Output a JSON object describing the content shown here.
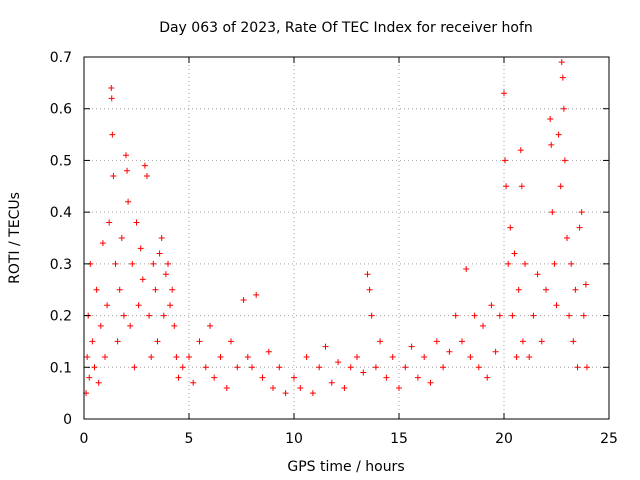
{
  "chart_data": {
    "type": "scatter",
    "title": "Day 063 of 2023, Rate Of TEC Index for receiver hofn",
    "xlabel": "GPS time / hours",
    "ylabel": "ROTI / TECUs",
    "xlim": [
      0,
      25
    ],
    "ylim": [
      0,
      0.7
    ],
    "x_ticks": [
      0,
      5,
      10,
      15,
      20,
      25
    ],
    "y_ticks": [
      0,
      0.1,
      0.2,
      0.3,
      0.4,
      0.5,
      0.6,
      0.7
    ],
    "x_tick_labels": [
      "0",
      "5",
      "10",
      "15",
      "20",
      "25"
    ],
    "y_tick_labels": [
      "0",
      "0.1",
      "0.2",
      "0.3",
      "0.4",
      "0.5",
      "0.6",
      "0.7"
    ],
    "grid": true,
    "marker": "plus",
    "series": [
      {
        "name": "ROTI",
        "color": "#ff0000",
        "points": [
          [
            0.1,
            0.05
          ],
          [
            0.15,
            0.12
          ],
          [
            0.2,
            0.2
          ],
          [
            0.25,
            0.08
          ],
          [
            0.3,
            0.3
          ],
          [
            0.4,
            0.15
          ],
          [
            0.5,
            0.1
          ],
          [
            0.6,
            0.25
          ],
          [
            0.7,
            0.07
          ],
          [
            0.8,
            0.18
          ],
          [
            0.9,
            0.34
          ],
          [
            1.0,
            0.12
          ],
          [
            1.1,
            0.22
          ],
          [
            1.2,
            0.38
          ],
          [
            1.3,
            0.64
          ],
          [
            1.32,
            0.62
          ],
          [
            1.35,
            0.55
          ],
          [
            1.4,
            0.47
          ],
          [
            1.5,
            0.3
          ],
          [
            1.6,
            0.15
          ],
          [
            1.7,
            0.25
          ],
          [
            1.8,
            0.35
          ],
          [
            1.9,
            0.2
          ],
          [
            2.0,
            0.51
          ],
          [
            2.05,
            0.48
          ],
          [
            2.1,
            0.42
          ],
          [
            2.2,
            0.18
          ],
          [
            2.3,
            0.3
          ],
          [
            2.4,
            0.1
          ],
          [
            2.5,
            0.38
          ],
          [
            2.6,
            0.22
          ],
          [
            2.7,
            0.33
          ],
          [
            2.8,
            0.27
          ],
          [
            2.9,
            0.49
          ],
          [
            3.0,
            0.47
          ],
          [
            3.1,
            0.2
          ],
          [
            3.2,
            0.12
          ],
          [
            3.3,
            0.3
          ],
          [
            3.4,
            0.25
          ],
          [
            3.5,
            0.15
          ],
          [
            3.6,
            0.32
          ],
          [
            3.7,
            0.35
          ],
          [
            3.8,
            0.2
          ],
          [
            3.9,
            0.28
          ],
          [
            4.0,
            0.3
          ],
          [
            4.1,
            0.22
          ],
          [
            4.2,
            0.25
          ],
          [
            4.3,
            0.18
          ],
          [
            4.4,
            0.12
          ],
          [
            4.5,
            0.08
          ],
          [
            4.7,
            0.1
          ],
          [
            5.0,
            0.12
          ],
          [
            5.2,
            0.07
          ],
          [
            5.5,
            0.15
          ],
          [
            5.8,
            0.1
          ],
          [
            6.0,
            0.18
          ],
          [
            6.2,
            0.08
          ],
          [
            6.5,
            0.12
          ],
          [
            6.8,
            0.06
          ],
          [
            7.0,
            0.15
          ],
          [
            7.3,
            0.1
          ],
          [
            7.6,
            0.23
          ],
          [
            7.8,
            0.12
          ],
          [
            8.0,
            0.1
          ],
          [
            8.2,
            0.24
          ],
          [
            8.5,
            0.08
          ],
          [
            8.8,
            0.13
          ],
          [
            9.0,
            0.06
          ],
          [
            9.3,
            0.1
          ],
          [
            9.6,
            0.05
          ],
          [
            10.0,
            0.08
          ],
          [
            10.3,
            0.06
          ],
          [
            10.6,
            0.12
          ],
          [
            10.9,
            0.05
          ],
          [
            11.2,
            0.1
          ],
          [
            11.5,
            0.14
          ],
          [
            11.8,
            0.07
          ],
          [
            12.1,
            0.11
          ],
          [
            12.4,
            0.06
          ],
          [
            12.7,
            0.1
          ],
          [
            13.0,
            0.12
          ],
          [
            13.3,
            0.09
          ],
          [
            13.5,
            0.28
          ],
          [
            13.6,
            0.25
          ],
          [
            13.7,
            0.2
          ],
          [
            13.9,
            0.1
          ],
          [
            14.1,
            0.15
          ],
          [
            14.4,
            0.08
          ],
          [
            14.7,
            0.12
          ],
          [
            15.0,
            0.06
          ],
          [
            15.3,
            0.1
          ],
          [
            15.6,
            0.14
          ],
          [
            15.9,
            0.08
          ],
          [
            16.2,
            0.12
          ],
          [
            16.5,
            0.07
          ],
          [
            16.8,
            0.15
          ],
          [
            17.1,
            0.1
          ],
          [
            17.4,
            0.13
          ],
          [
            17.7,
            0.2
          ],
          [
            18.0,
            0.15
          ],
          [
            18.2,
            0.29
          ],
          [
            18.4,
            0.12
          ],
          [
            18.6,
            0.2
          ],
          [
            18.8,
            0.1
          ],
          [
            19.0,
            0.18
          ],
          [
            19.2,
            0.08
          ],
          [
            19.4,
            0.22
          ],
          [
            19.6,
            0.13
          ],
          [
            19.8,
            0.2
          ],
          [
            20.0,
            0.63
          ],
          [
            20.05,
            0.5
          ],
          [
            20.1,
            0.45
          ],
          [
            20.2,
            0.3
          ],
          [
            20.3,
            0.37
          ],
          [
            20.4,
            0.2
          ],
          [
            20.5,
            0.32
          ],
          [
            20.6,
            0.12
          ],
          [
            20.7,
            0.25
          ],
          [
            20.8,
            0.52
          ],
          [
            20.85,
            0.45
          ],
          [
            20.9,
            0.15
          ],
          [
            21.0,
            0.3
          ],
          [
            21.2,
            0.12
          ],
          [
            21.4,
            0.2
          ],
          [
            21.6,
            0.28
          ],
          [
            21.8,
            0.15
          ],
          [
            22.0,
            0.25
          ],
          [
            22.2,
            0.58
          ],
          [
            22.25,
            0.53
          ],
          [
            22.3,
            0.4
          ],
          [
            22.4,
            0.3
          ],
          [
            22.5,
            0.22
          ],
          [
            22.6,
            0.55
          ],
          [
            22.7,
            0.45
          ],
          [
            22.75,
            0.69
          ],
          [
            22.8,
            0.66
          ],
          [
            22.85,
            0.6
          ],
          [
            22.9,
            0.5
          ],
          [
            23.0,
            0.35
          ],
          [
            23.1,
            0.2
          ],
          [
            23.2,
            0.3
          ],
          [
            23.3,
            0.15
          ],
          [
            23.4,
            0.25
          ],
          [
            23.5,
            0.1
          ],
          [
            23.6,
            0.37
          ],
          [
            23.7,
            0.4
          ],
          [
            23.8,
            0.2
          ],
          [
            23.9,
            0.26
          ],
          [
            23.95,
            0.1
          ]
        ]
      }
    ]
  }
}
